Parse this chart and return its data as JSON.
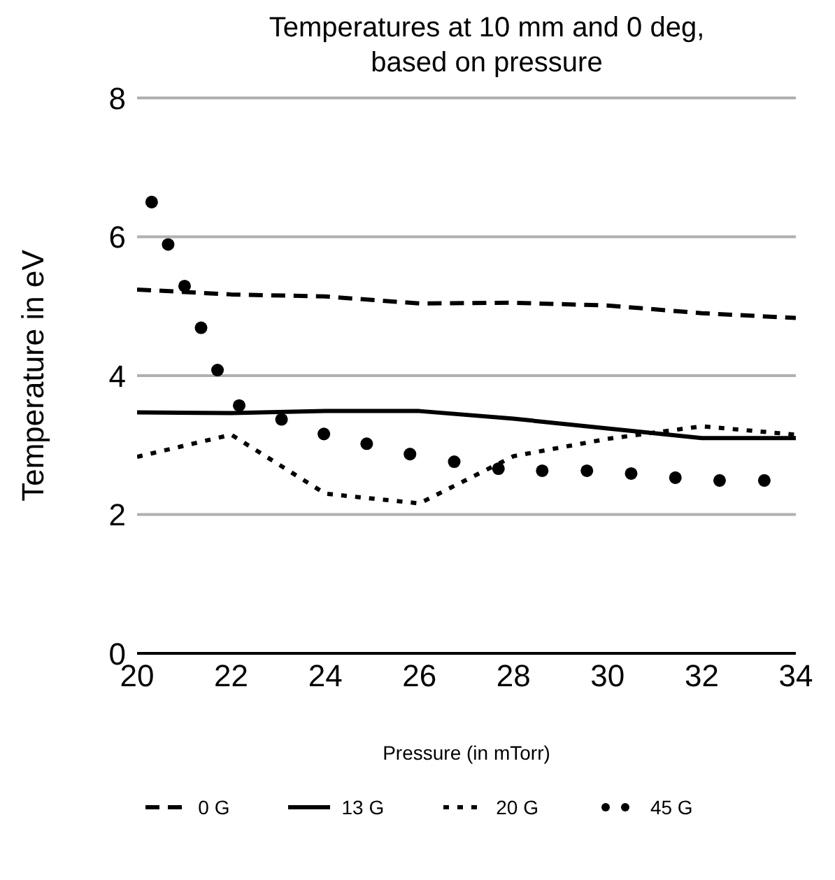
{
  "chart_data": {
    "type": "line",
    "title": "Temperatures at 10 mm and 0 deg, based on pressure",
    "xlabel": "Pressure (in mTorr)",
    "ylabel": "Temperature in eV",
    "xlim": [
      20,
      34
    ],
    "xticks": [
      20,
      22,
      24,
      26,
      28,
      30,
      32,
      34
    ],
    "ylim": [
      0,
      8
    ],
    "yticks": [
      0,
      2,
      4,
      6,
      8
    ],
    "grid": "y",
    "legend": "bottom",
    "series": [
      {
        "name": "0 G",
        "color": "#000000",
        "line_style": "dashed",
        "x": [
          20,
          22,
          24,
          26,
          28,
          30,
          32,
          34
        ],
        "values": [
          5.24,
          5.17,
          5.14,
          5.04,
          5.05,
          5.01,
          4.9,
          4.83
        ]
      },
      {
        "name": "13 G",
        "color": "#000000",
        "line_style": "solid",
        "x": [
          20,
          22,
          24,
          26,
          28,
          30,
          32,
          34
        ],
        "values": [
          3.47,
          3.46,
          3.49,
          3.49,
          3.38,
          3.24,
          3.1,
          3.1
        ]
      },
      {
        "name": "20 G",
        "color": "#000000",
        "line_style": "dotted",
        "x": [
          20,
          22,
          24,
          26,
          28,
          30,
          32,
          34
        ],
        "values": [
          2.83,
          3.15,
          2.3,
          2.16,
          2.84,
          3.09,
          3.27,
          3.15
        ]
      },
      {
        "name": "45 G",
        "color": "#000000",
        "type": "scatter",
        "marker": "circle",
        "x": [
          20.31,
          20.66,
          21.01,
          21.36,
          21.71,
          22.17,
          23.07,
          23.97,
          24.88,
          25.8,
          26.74,
          27.68,
          28.61,
          29.56,
          30.5,
          31.44,
          32.38,
          33.33
        ],
        "values": [
          6.5,
          5.89,
          5.29,
          4.69,
          4.08,
          3.57,
          3.37,
          3.16,
          3.02,
          2.87,
          2.76,
          2.66,
          2.63,
          2.63,
          2.59,
          2.53,
          2.49,
          2.49
        ]
      }
    ]
  }
}
